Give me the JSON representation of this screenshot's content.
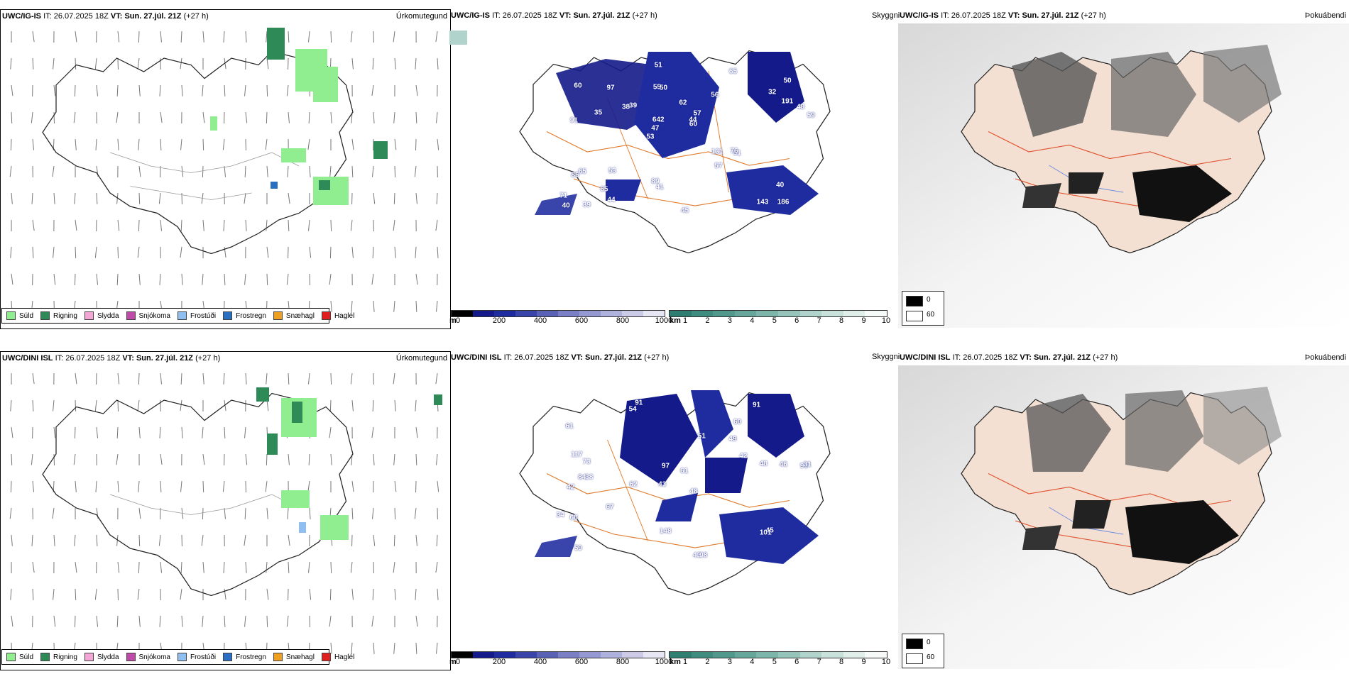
{
  "rows": [
    {
      "model": "UWC/IG-IS",
      "it_label": "IT:",
      "it_value": "26.07.2025 18Z",
      "vt_label": "VT:",
      "vt_value": "Sun. 27.júl. 21Z",
      "lead": "(+27 h)",
      "cloud_peaks": [
        "186",
        "91",
        "50",
        "53",
        "56",
        "39",
        "55",
        "62",
        "65",
        "39",
        "71",
        "65",
        "50",
        "57",
        "51",
        "60",
        "51",
        "59",
        "131",
        "191",
        "47",
        "89",
        "642",
        "97",
        "65",
        "53",
        "143",
        "40",
        "76",
        "45",
        "38",
        "35",
        "57",
        "44",
        "48",
        "44",
        "40",
        "41",
        "60",
        "86",
        "32"
      ]
    },
    {
      "model": "UWC/DINI ISL",
      "it_label": "IT:",
      "it_value": "26.07.2025 18Z",
      "vt_label": "VT:",
      "vt_value": "Sun. 27.júl. 21Z",
      "lead": "(+27 h)",
      "cloud_peaks": [
        "91",
        "60",
        "99",
        "43",
        "48",
        "38",
        "61",
        "49",
        "42",
        "51",
        "61",
        "59",
        "54",
        "62",
        "43",
        "98",
        "148",
        "91",
        "42",
        "67",
        "73",
        "84",
        "31",
        "46",
        "34",
        "117",
        "97",
        "48",
        "45",
        "68",
        "101"
      ]
    }
  ],
  "panels": {
    "precip_title": "Úrkomutegund",
    "cloud_title": "Skyggni",
    "fog_title": "Þokuábendi"
  },
  "precip_legend": [
    {
      "label": "Súld",
      "color": "#90ee90"
    },
    {
      "label": "Rigning",
      "color": "#2e8b57"
    },
    {
      "label": "Slydda",
      "color": "#f4a6d4"
    },
    {
      "label": "Snjókoma",
      "color": "#c04aa8"
    },
    {
      "label": "Frostúði",
      "color": "#8fbef0"
    },
    {
      "label": "Frostregn",
      "color": "#2a6fc0"
    },
    {
      "label": "Snæhagl",
      "color": "#f0a020"
    },
    {
      "label": "Haglél",
      "color": "#e02020"
    }
  ],
  "cloud_base_bar": {
    "unit": "m",
    "ticks": [
      "0",
      "200",
      "400",
      "600",
      "800",
      "1000"
    ],
    "colors": [
      "#000000",
      "#141a8a",
      "#1f2c9f",
      "#3a45ac",
      "#5a62b8",
      "#7a7fc6",
      "#9599d2",
      "#b0b2de",
      "#cbcbe8",
      "#e6e6f4"
    ]
  },
  "visibility_bar": {
    "unit": "km",
    "ticks": [
      "1",
      "2",
      "3",
      "4",
      "5",
      "6",
      "7",
      "8",
      "9",
      "10"
    ],
    "colors": [
      "#2e7f72",
      "#3f8d80",
      "#51998d",
      "#67a79b",
      "#7eb5aa",
      "#97c4ba",
      "#b0d3cb",
      "#c8e1db",
      "#e0eeea",
      "#f6faf9"
    ]
  },
  "fog_legend": {
    "black_label": "0",
    "white_label": "60"
  }
}
